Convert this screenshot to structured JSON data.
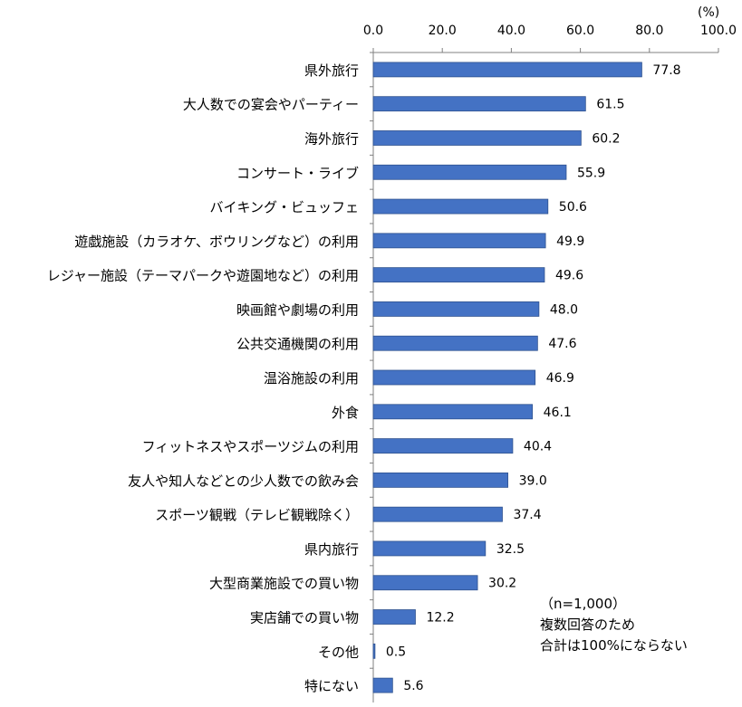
{
  "chart_data": {
    "type": "bar",
    "orientation": "horizontal",
    "unit": "(%)",
    "xlim": [
      0,
      100
    ],
    "ticks": [
      "0.0",
      "20.0",
      "40.0",
      "60.0",
      "80.0",
      "100.0"
    ],
    "tick_values": [
      0,
      20,
      40,
      60,
      80,
      100
    ],
    "bar_color": "#4472C4",
    "categories": [
      "県外旅行",
      "大人数での宴会やパーティー",
      "海外旅行",
      "コンサート・ライブ",
      "バイキング・ビュッフェ",
      "遊戯施設（カラオケ、ボウリングなど）の利用",
      "レジャー施設（テーマパークや遊園地など）の利用",
      "映画館や劇場の利用",
      "公共交通機関の利用",
      "温浴施設の利用",
      "外食",
      "フィットネスやスポーツジムの利用",
      "友人や知人などとの少人数での飲み会",
      "スポーツ観戦（テレビ観戦除く）",
      "県内旅行",
      "大型商業施設での買い物",
      "実店舗での買い物",
      "その他",
      "特にない"
    ],
    "values": [
      77.8,
      61.5,
      60.2,
      55.9,
      50.6,
      49.9,
      49.6,
      48.0,
      47.6,
      46.9,
      46.1,
      40.4,
      39.0,
      37.4,
      32.5,
      30.2,
      12.2,
      0.5,
      5.6
    ],
    "value_labels": [
      "77.8",
      "61.5",
      "60.2",
      "55.9",
      "50.6",
      "49.9",
      "49.6",
      "48.0",
      "47.6",
      "46.9",
      "46.1",
      "40.4",
      "39.0",
      "37.4",
      "32.5",
      "30.2",
      "12.2",
      "0.5",
      "5.6"
    ]
  },
  "notes": {
    "sample": "（n=1,000）",
    "line1": "複数回答のため",
    "line2": "合計は100%にならない"
  }
}
